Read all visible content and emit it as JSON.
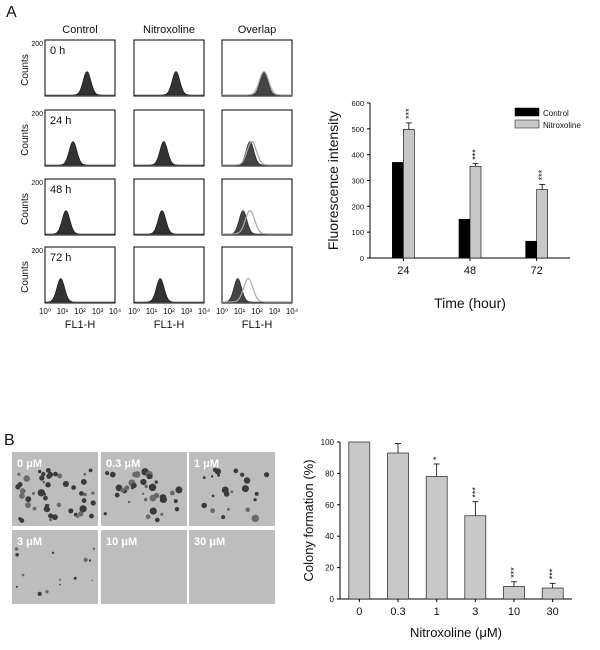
{
  "panel_labels": {
    "a": "A",
    "b": "B"
  },
  "flow": {
    "columns": [
      "Control",
      "Nitroxoline",
      "Overlap"
    ],
    "rows": [
      "0 h",
      "24 h",
      "48 h",
      "72 h"
    ],
    "y_label": "Counts",
    "y_max_tick": "200",
    "x_label": "FL1-H",
    "x_ticks": [
      "10⁰",
      "10¹",
      "10²",
      "10³",
      "10⁴"
    ],
    "peaks_log10": {
      "control": [
        2.4,
        1.6,
        1.2,
        0.9
      ],
      "nitroxoline": [
        2.4,
        1.7,
        1.6,
        1.5
      ]
    }
  },
  "micro": {
    "labels": [
      "0 μM",
      "0.3 μM",
      "1 μM",
      "3 μM",
      "10 μM",
      "30 μM"
    ],
    "colonies": [
      50,
      38,
      22,
      14,
      0,
      0
    ]
  },
  "chart_data": [
    {
      "type": "bar",
      "categories": [
        "24",
        "48",
        "72"
      ],
      "series": [
        {
          "name": "Control",
          "values": [
            370,
            150,
            65
          ],
          "errors": [
            0,
            0,
            0
          ],
          "color": "#000000"
        },
        {
          "name": "Nitroxoline",
          "values": [
            498,
            355,
            265
          ],
          "errors": [
            25,
            10,
            20
          ],
          "color": "#c8c8c8"
        }
      ],
      "significance": [
        "",
        "",
        "",
        "***",
        "***",
        "***"
      ],
      "xlabel": "Time (hour)",
      "ylabel": "Fluorescence intensity",
      "ylim": [
        0,
        600
      ],
      "yticks": [
        0,
        100,
        200,
        300,
        400,
        500,
        600
      ],
      "legend": "top-right"
    },
    {
      "type": "bar",
      "categories": [
        "0",
        "0.3",
        "1",
        "3",
        "10",
        "30"
      ],
      "series": [
        {
          "values": [
            100,
            93,
            78,
            53,
            8,
            7
          ],
          "errors": [
            0,
            6,
            8,
            9,
            3,
            3
          ],
          "color": "#c8c8c8"
        }
      ],
      "significance": [
        "",
        "",
        "*",
        "***",
        "***",
        "***"
      ],
      "xlabel": "Nitroxoline (μM)",
      "ylabel": "Colony formation (%)",
      "ylim": [
        0,
        100
      ],
      "yticks": [
        0,
        20,
        40,
        60,
        80,
        100
      ]
    }
  ]
}
